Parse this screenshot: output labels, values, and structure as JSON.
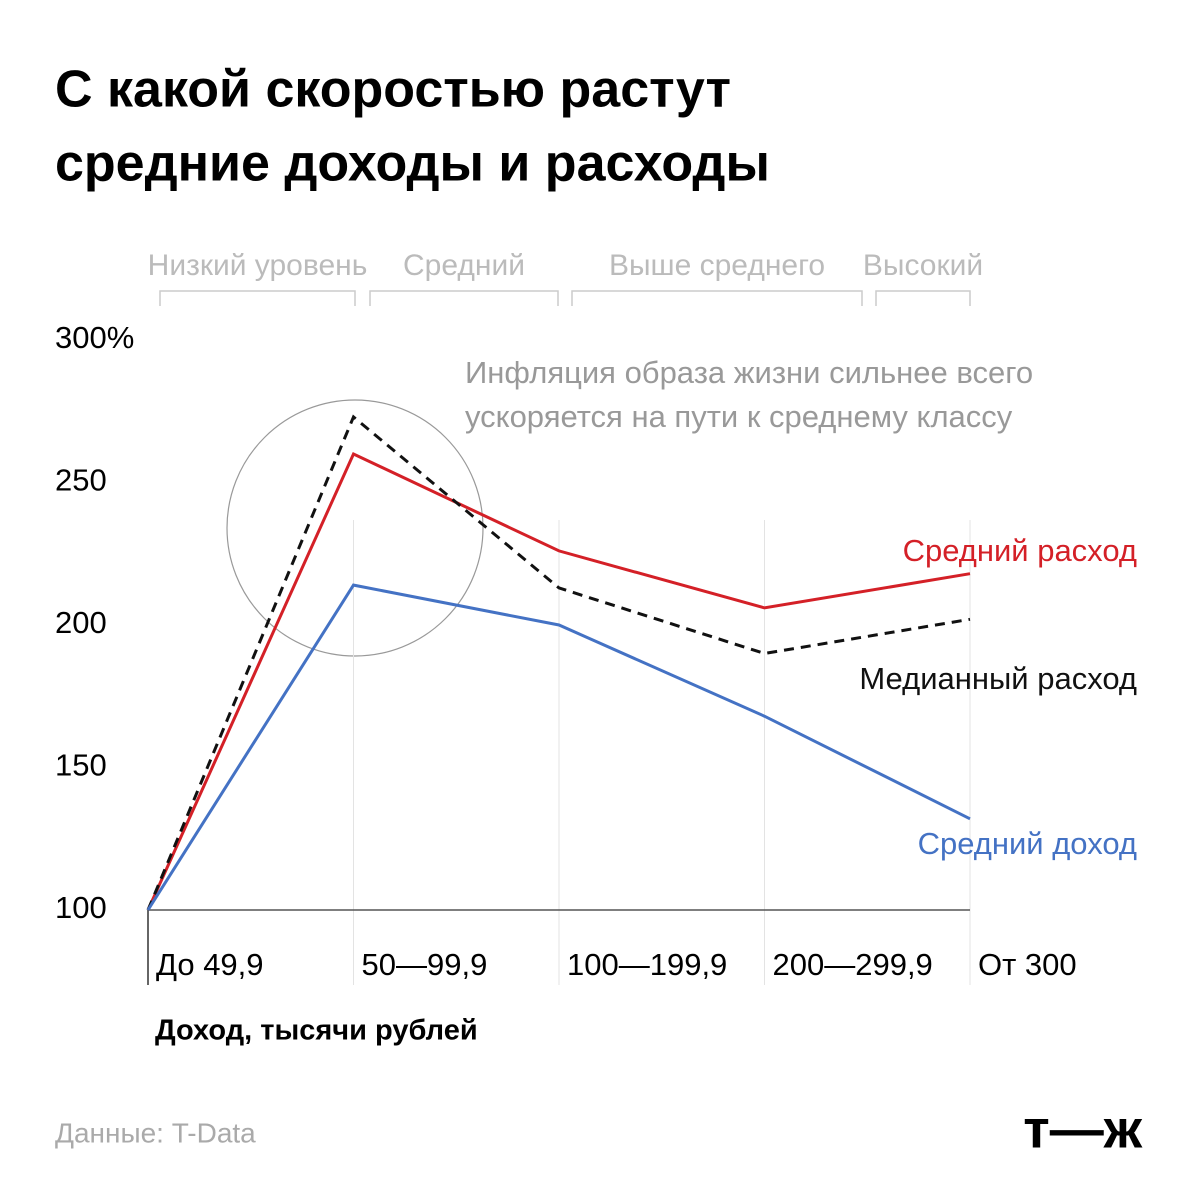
{
  "chart_data": {
    "type": "line",
    "title": [
      "С какой скоростью растут",
      "средние доходы и расходы"
    ],
    "income_levels": [
      "Низкий уровень",
      "Средний",
      "Выше среднего",
      "Высокий"
    ],
    "annotation": [
      "Инфляция образа жизни сильнее всего",
      "ускоряется на пути к среднему классу"
    ],
    "categories": [
      "До 49,9",
      "50—99,9",
      "100—199,9",
      "200—299,9",
      "От 300"
    ],
    "x_label": "Доход, тысячи рублей",
    "series": [
      {
        "name": "Средний расход",
        "color": "#d42027",
        "dashed": false,
        "values": [
          100,
          260,
          226,
          206,
          218
        ]
      },
      {
        "name": "Медианный расход",
        "color": "#111111",
        "dashed": true,
        "values": [
          100,
          273,
          213,
          190,
          202
        ]
      },
      {
        "name": "Средний доход",
        "color": "#4472c4",
        "dashed": false,
        "values": [
          100,
          214,
          200,
          168,
          132
        ]
      }
    ],
    "ylim": [
      100,
      300
    ],
    "yticks": [
      {
        "value": 300,
        "label": "300%"
      },
      250,
      200,
      150,
      100
    ],
    "grid": false,
    "source": "Данные: T-Data",
    "logo": "т—ж"
  }
}
